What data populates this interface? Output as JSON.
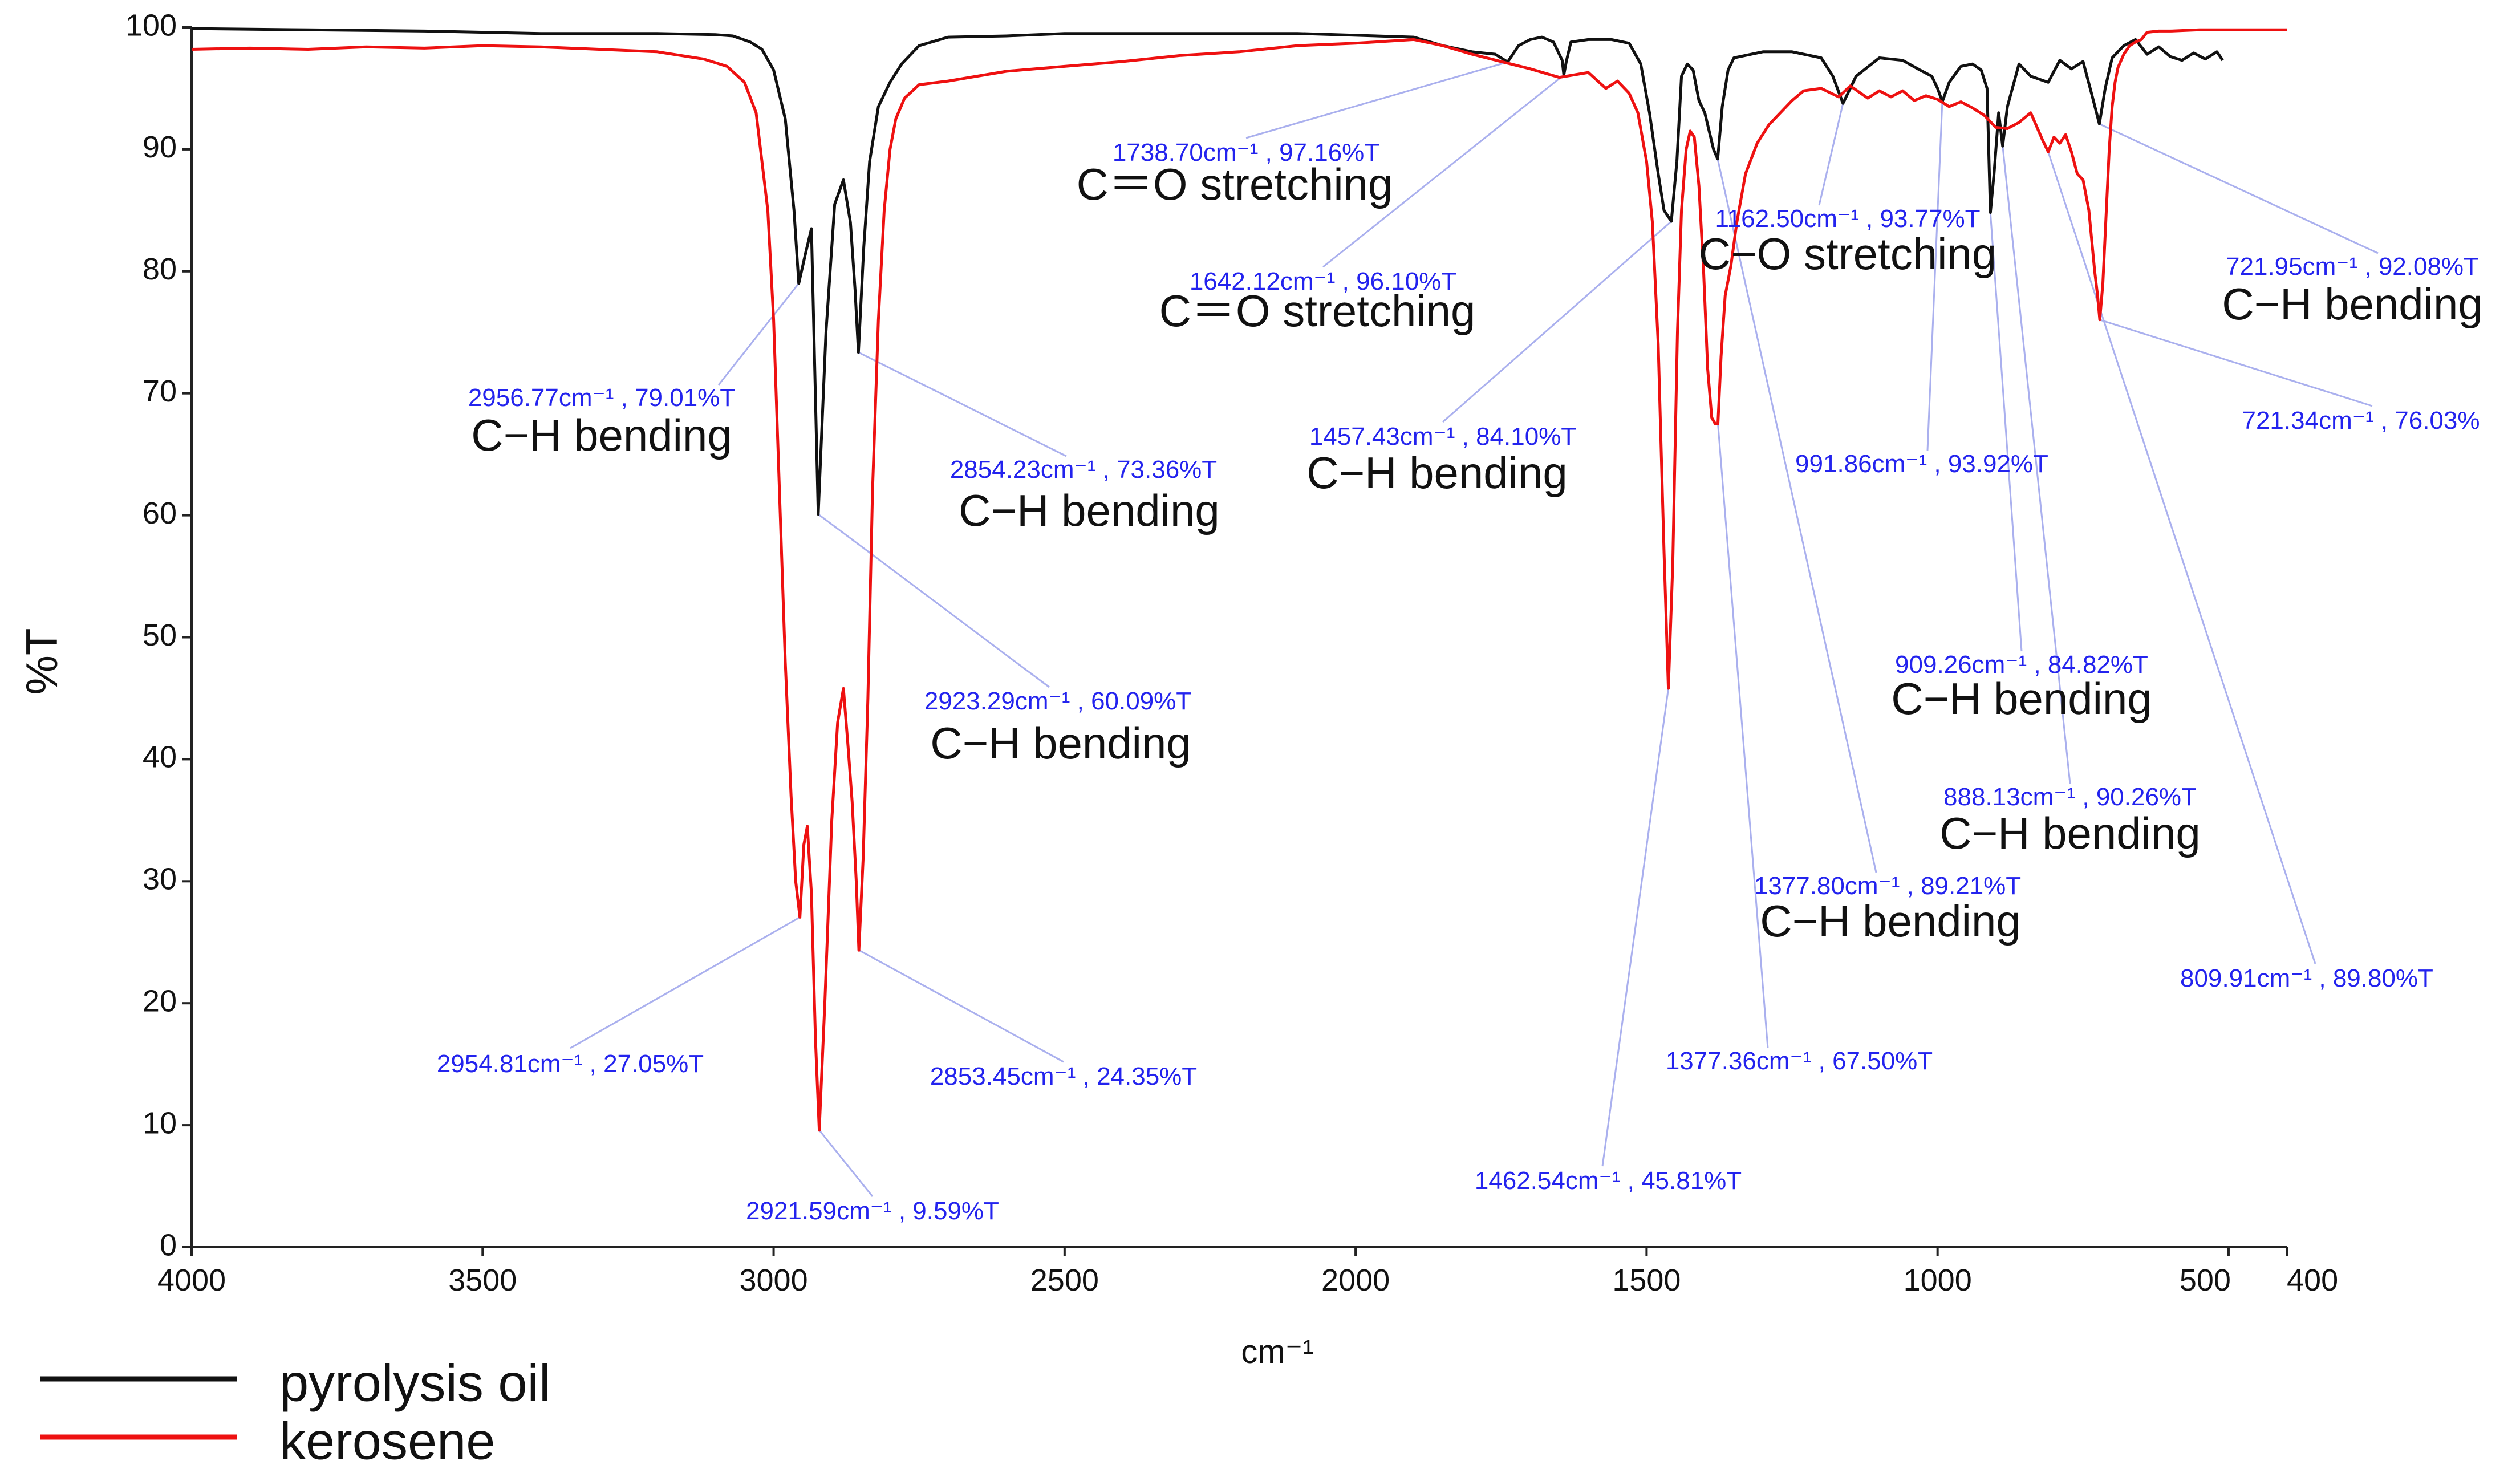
{
  "chart_data": {
    "type": "line",
    "title": "",
    "xlabel": "cm⁻¹",
    "ylabel": "%T",
    "xlim": [
      4000,
      400
    ],
    "ylim": [
      0,
      100
    ],
    "x_ticks": [
      {
        "value": 4000,
        "label": "4000"
      },
      {
        "value": 3500,
        "label": "3500"
      },
      {
        "value": 3000,
        "label": "3000"
      },
      {
        "value": 2500,
        "label": "2500"
      },
      {
        "value": 2000,
        "label": "2000"
      },
      {
        "value": 1500,
        "label": "1500"
      },
      {
        "value": 1000,
        "label": "1000"
      },
      {
        "value": 500,
        "label": "500"
      },
      {
        "value": 400,
        "label": "400"
      }
    ],
    "y_ticks": [
      {
        "value": 0,
        "label": "0"
      },
      {
        "value": 10,
        "label": "10"
      },
      {
        "value": 20,
        "label": "20"
      },
      {
        "value": 30,
        "label": "30"
      },
      {
        "value": 40,
        "label": "40"
      },
      {
        "value": 50,
        "label": "50"
      },
      {
        "value": 60,
        "label": "60"
      },
      {
        "value": 70,
        "label": "70"
      },
      {
        "value": 80,
        "label": "80"
      },
      {
        "value": 90,
        "label": "90"
      },
      {
        "value": 100,
        "label": "100"
      }
    ],
    "legend": {
      "position": "bottom-left",
      "entries": [
        {
          "name": "pyrolysis oil",
          "color": "#111111"
        },
        {
          "name": "kerosene",
          "color": "#ee1111"
        }
      ]
    },
    "series": [
      {
        "name": "pyrolysis oil",
        "color": "#111111",
        "x": [
          4000,
          3800,
          3600,
          3400,
          3200,
          3100,
          3070,
          3040,
          3020,
          3000,
          2980,
          2965,
          2956.77,
          2945,
          2935,
          2923.29,
          2910,
          2895,
          2880,
          2868,
          2860,
          2854.23,
          2845,
          2835,
          2820,
          2800,
          2780,
          2750,
          2700,
          2600,
          2500,
          2300,
          2100,
          1900,
          1850,
          1800,
          1760,
          1738.7,
          1720,
          1700,
          1680,
          1660,
          1645,
          1642.12,
          1638,
          1630,
          1600,
          1560,
          1530,
          1510,
          1495,
          1480,
          1470,
          1457.43,
          1448,
          1440,
          1430,
          1420,
          1410,
          1400,
          1390,
          1385,
          1377.8,
          1370,
          1360,
          1350,
          1320,
          1300,
          1250,
          1200,
          1180,
          1162.5,
          1140,
          1100,
          1060,
          1030,
          1010,
          1000,
          991.86,
          980,
          960,
          940,
          925,
          915,
          909.26,
          903,
          895,
          888.13,
          880,
          860,
          840,
          810,
          790,
          770,
          750,
          735,
          721.95,
          712,
          700,
          680,
          660,
          640,
          620,
          600,
          580,
          560,
          540,
          520,
          510
        ],
        "y": [
          99.9,
          99.8,
          99.7,
          99.5,
          99.5,
          99.4,
          99.3,
          98.8,
          98.2,
          96.5,
          92.5,
          85.0,
          79.01,
          81.5,
          83.5,
          60.09,
          75.0,
          85.5,
          87.5,
          84.0,
          78.5,
          73.36,
          82.0,
          89.0,
          93.5,
          95.5,
          97.0,
          98.5,
          99.2,
          99.3,
          99.5,
          99.5,
          99.5,
          99.2,
          98.5,
          98.0,
          97.8,
          97.16,
          98.5,
          99.0,
          99.2,
          98.8,
          97.3,
          96.1,
          97.2,
          98.8,
          99.0,
          99.0,
          98.7,
          97.0,
          93.0,
          88.0,
          85.0,
          84.1,
          89.0,
          96.0,
          97.0,
          96.5,
          94.0,
          93.0,
          91.0,
          90.0,
          89.21,
          93.5,
          96.5,
          97.5,
          97.8,
          98.0,
          98.0,
          97.5,
          96.0,
          93.77,
          96.0,
          97.5,
          97.3,
          96.5,
          96.0,
          95.0,
          93.92,
          95.5,
          96.8,
          97.0,
          96.5,
          95.0,
          84.82,
          88.0,
          93.0,
          90.26,
          93.5,
          97.0,
          96.0,
          95.5,
          97.3,
          96.6,
          97.2,
          94.5,
          92.08,
          95.0,
          97.5,
          98.5,
          99.0,
          97.8,
          98.4,
          97.6,
          97.3,
          97.9,
          97.4,
          98.0,
          97.3
        ]
      },
      {
        "name": "kerosene",
        "color": "#ee1111",
        "x": [
          4000,
          3900,
          3800,
          3700,
          3600,
          3500,
          3400,
          3300,
          3200,
          3120,
          3080,
          3050,
          3030,
          3010,
          3000,
          2990,
          2980,
          2970,
          2962,
          2954.81,
          2948,
          2942,
          2935,
          2928,
          2921.59,
          2912,
          2900,
          2890,
          2880,
          2872,
          2865,
          2858,
          2853.45,
          2846,
          2838,
          2830,
          2820,
          2810,
          2800,
          2790,
          2775,
          2750,
          2700,
          2600,
          2500,
          2400,
          2300,
          2200,
          2100,
          2000,
          1900,
          1850,
          1800,
          1750,
          1700,
          1650,
          1600,
          1570,
          1550,
          1530,
          1515,
          1500,
          1490,
          1480,
          1470,
          1462.54,
          1455,
          1447,
          1440,
          1432,
          1425,
          1418,
          1410,
          1402,
          1395,
          1388,
          1382,
          1377.36,
          1372,
          1365,
          1355,
          1345,
          1330,
          1310,
          1290,
          1270,
          1250,
          1230,
          1200,
          1170,
          1150,
          1120,
          1100,
          1080,
          1060,
          1040,
          1020,
          1000,
          980,
          960,
          940,
          920,
          900,
          880,
          860,
          840,
          820,
          809.91,
          800,
          790,
          780,
          770,
          760,
          750,
          740,
          730,
          725,
          721.34,
          716,
          710,
          705,
          700,
          695,
          690,
          680,
          670,
          660,
          650,
          640,
          620,
          600,
          550,
          500,
          450,
          400
        ],
        "y": [
          98.2,
          98.3,
          98.2,
          98.4,
          98.3,
          98.5,
          98.4,
          98.2,
          98.0,
          97.4,
          96.8,
          95.5,
          93.0,
          85.0,
          76.0,
          62.0,
          48.0,
          37.0,
          30.0,
          27.05,
          33.0,
          34.5,
          29.0,
          17.0,
          9.59,
          20.0,
          35.0,
          43.0,
          45.8,
          41.0,
          36.5,
          30.0,
          24.35,
          32.0,
          45.0,
          62.0,
          76.0,
          85.0,
          90.0,
          92.5,
          94.2,
          95.3,
          95.6,
          96.4,
          96.8,
          97.2,
          97.7,
          98.0,
          98.5,
          98.7,
          99.0,
          98.5,
          97.8,
          97.2,
          96.6,
          95.9,
          96.3,
          95.0,
          95.6,
          94.6,
          93.0,
          89.0,
          84.0,
          74.0,
          57.0,
          45.81,
          56.0,
          75.0,
          85.0,
          90.0,
          91.5,
          91.0,
          87.0,
          80.0,
          72.0,
          68.0,
          67.5,
          67.5,
          73.0,
          78.0,
          80.5,
          84.0,
          88.0,
          90.5,
          92.0,
          93.0,
          94.0,
          94.8,
          95.0,
          94.3,
          95.2,
          94.2,
          94.8,
          94.3,
          94.8,
          94.0,
          94.4,
          94.1,
          93.5,
          93.9,
          93.4,
          92.8,
          91.8,
          91.7,
          92.2,
          93.0,
          90.8,
          89.8,
          91.0,
          90.5,
          91.2,
          89.8,
          88.0,
          87.5,
          85.0,
          80.0,
          78.0,
          76.03,
          79.0,
          85.0,
          90.0,
          93.5,
          95.5,
          96.7,
          97.8,
          98.5,
          98.8,
          99.0,
          99.6,
          99.7,
          99.7,
          99.8,
          99.8,
          99.8,
          99.8
        ]
      }
    ],
    "annotations": [
      {
        "label": "2956.77cm⁻¹ , 79.01%T",
        "assignment": "C−H bending",
        "peak_x": 2956.77,
        "peak_y": 79.01,
        "series": "pyrolysis oil"
      },
      {
        "label": "2854.23cm⁻¹ , 73.36%T",
        "assignment": "C−H bending",
        "peak_x": 2854.23,
        "peak_y": 73.36,
        "series": "pyrolysis oil"
      },
      {
        "label": "2923.29cm⁻¹ , 60.09%T",
        "assignment": "C−H bending",
        "peak_x": 2923.29,
        "peak_y": 60.09,
        "series": "pyrolysis oil"
      },
      {
        "label": "2954.81cm⁻¹ , 27.05%T",
        "assignment": "",
        "peak_x": 2954.81,
        "peak_y": 27.05,
        "series": "kerosene"
      },
      {
        "label": "2853.45cm⁻¹ , 24.35%T",
        "assignment": "",
        "peak_x": 2853.45,
        "peak_y": 24.35,
        "series": "kerosene"
      },
      {
        "label": "2921.59cm⁻¹ , 9.59%T",
        "assignment": "",
        "peak_x": 2921.59,
        "peak_y": 9.59,
        "series": "kerosene"
      },
      {
        "label": "1738.70cm⁻¹ , 97.16%T",
        "assignment": "C＝O stretching",
        "peak_x": 1738.7,
        "peak_y": 97.16,
        "series": "pyrolysis oil"
      },
      {
        "label": "1642.12cm⁻¹ , 96.10%T",
        "assignment": "C＝O stretching",
        "peak_x": 1642.12,
        "peak_y": 96.1,
        "series": "pyrolysis oil"
      },
      {
        "label": "1457.43cm⁻¹ , 84.10%T",
        "assignment": "C−H bending",
        "peak_x": 1457.43,
        "peak_y": 84.1,
        "series": "pyrolysis oil"
      },
      {
        "label": "1162.50cm⁻¹ , 93.77%T",
        "assignment": "C−O stretching",
        "peak_x": 1162.5,
        "peak_y": 93.77,
        "series": "pyrolysis oil"
      },
      {
        "label": "991.86cm⁻¹ , 93.92%T",
        "assignment": "",
        "peak_x": 991.86,
        "peak_y": 93.92,
        "series": "pyrolysis oil"
      },
      {
        "label": "909.26cm⁻¹ , 84.82%T",
        "assignment": "C−H bending",
        "peak_x": 909.26,
        "peak_y": 84.82,
        "series": "pyrolysis oil"
      },
      {
        "label": "888.13cm⁻¹ , 90.26%T",
        "assignment": "C−H bending",
        "peak_x": 888.13,
        "peak_y": 90.26,
        "series": "pyrolysis oil"
      },
      {
        "label": "1377.80cm⁻¹ , 89.21%T",
        "assignment": "C−H bending",
        "peak_x": 1377.8,
        "peak_y": 89.21,
        "series": "pyrolysis oil"
      },
      {
        "label": "1377.36cm⁻¹ , 67.50%T",
        "assignment": "",
        "peak_x": 1377.36,
        "peak_y": 67.5,
        "series": "kerosene"
      },
      {
        "label": "1462.54cm⁻¹ , 45.81%T",
        "assignment": "",
        "peak_x": 1462.54,
        "peak_y": 45.81,
        "series": "kerosene"
      },
      {
        "label": "721.95cm⁻¹ , 92.08%T",
        "assignment": "C−H bending",
        "peak_x": 721.95,
        "peak_y": 92.08,
        "series": "pyrolysis oil"
      },
      {
        "label": "721.34cm⁻¹ , 76.03%",
        "assignment": "",
        "peak_x": 721.34,
        "peak_y": 76.03,
        "series": "kerosene"
      },
      {
        "label": "809.91cm⁻¹ , 89.80%T",
        "assignment": "",
        "peak_x": 809.91,
        "peak_y": 89.8,
        "series": "kerosene"
      }
    ]
  }
}
